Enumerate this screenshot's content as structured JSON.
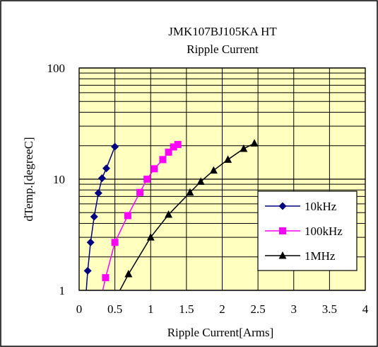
{
  "chart_data": {
    "type": "line",
    "title": "JMK107BJ105KA HT",
    "subtitle": "Ripple Current",
    "xlabel": "Ripple Current[Arms]",
    "ylabel": "dTemp.[degreeC]",
    "xlim": [
      0,
      4
    ],
    "ylim": [
      1,
      100
    ],
    "y_scale": "log",
    "grid": true,
    "legend_position": "right",
    "background_color": "#ffffc0",
    "x_ticks": [
      "0",
      "0.5",
      "1",
      "1.5",
      "2",
      "2.5",
      "3",
      "3.5",
      "4"
    ],
    "y_ticks": [
      "1",
      "10",
      "100"
    ],
    "series": [
      {
        "name": "10kHz",
        "color": "#000080",
        "marker": "diamond",
        "points": [
          {
            "x": 0.1,
            "y": 1.0
          },
          {
            "x": 0.12,
            "y": 1.5
          },
          {
            "x": 0.16,
            "y": 2.7
          },
          {
            "x": 0.21,
            "y": 4.6
          },
          {
            "x": 0.27,
            "y": 7.5
          },
          {
            "x": 0.32,
            "y": 10.2
          },
          {
            "x": 0.38,
            "y": 12.5
          },
          {
            "x": 0.5,
            "y": 19.6
          }
        ]
      },
      {
        "name": "100kHz",
        "color": "#ff00ff",
        "marker": "square",
        "points": [
          {
            "x": 0.33,
            "y": 1.0
          },
          {
            "x": 0.37,
            "y": 1.3
          },
          {
            "x": 0.5,
            "y": 2.7
          },
          {
            "x": 0.68,
            "y": 4.7
          },
          {
            "x": 0.85,
            "y": 7.6
          },
          {
            "x": 0.95,
            "y": 10.0
          },
          {
            "x": 1.05,
            "y": 12.4
          },
          {
            "x": 1.17,
            "y": 15.0
          },
          {
            "x": 1.25,
            "y": 17.5
          },
          {
            "x": 1.32,
            "y": 19.5
          },
          {
            "x": 1.38,
            "y": 20.5
          }
        ]
      },
      {
        "name": "1MHz",
        "color": "#000000",
        "marker": "triangle",
        "points": [
          {
            "x": 0.57,
            "y": 1.0
          },
          {
            "x": 0.69,
            "y": 1.4
          },
          {
            "x": 1.0,
            "y": 3.0
          },
          {
            "x": 1.25,
            "y": 4.8
          },
          {
            "x": 1.55,
            "y": 7.6
          },
          {
            "x": 1.7,
            "y": 9.5
          },
          {
            "x": 1.88,
            "y": 12.0
          },
          {
            "x": 2.08,
            "y": 15.0
          },
          {
            "x": 2.3,
            "y": 18.8
          },
          {
            "x": 2.45,
            "y": 21.0
          }
        ]
      }
    ]
  }
}
